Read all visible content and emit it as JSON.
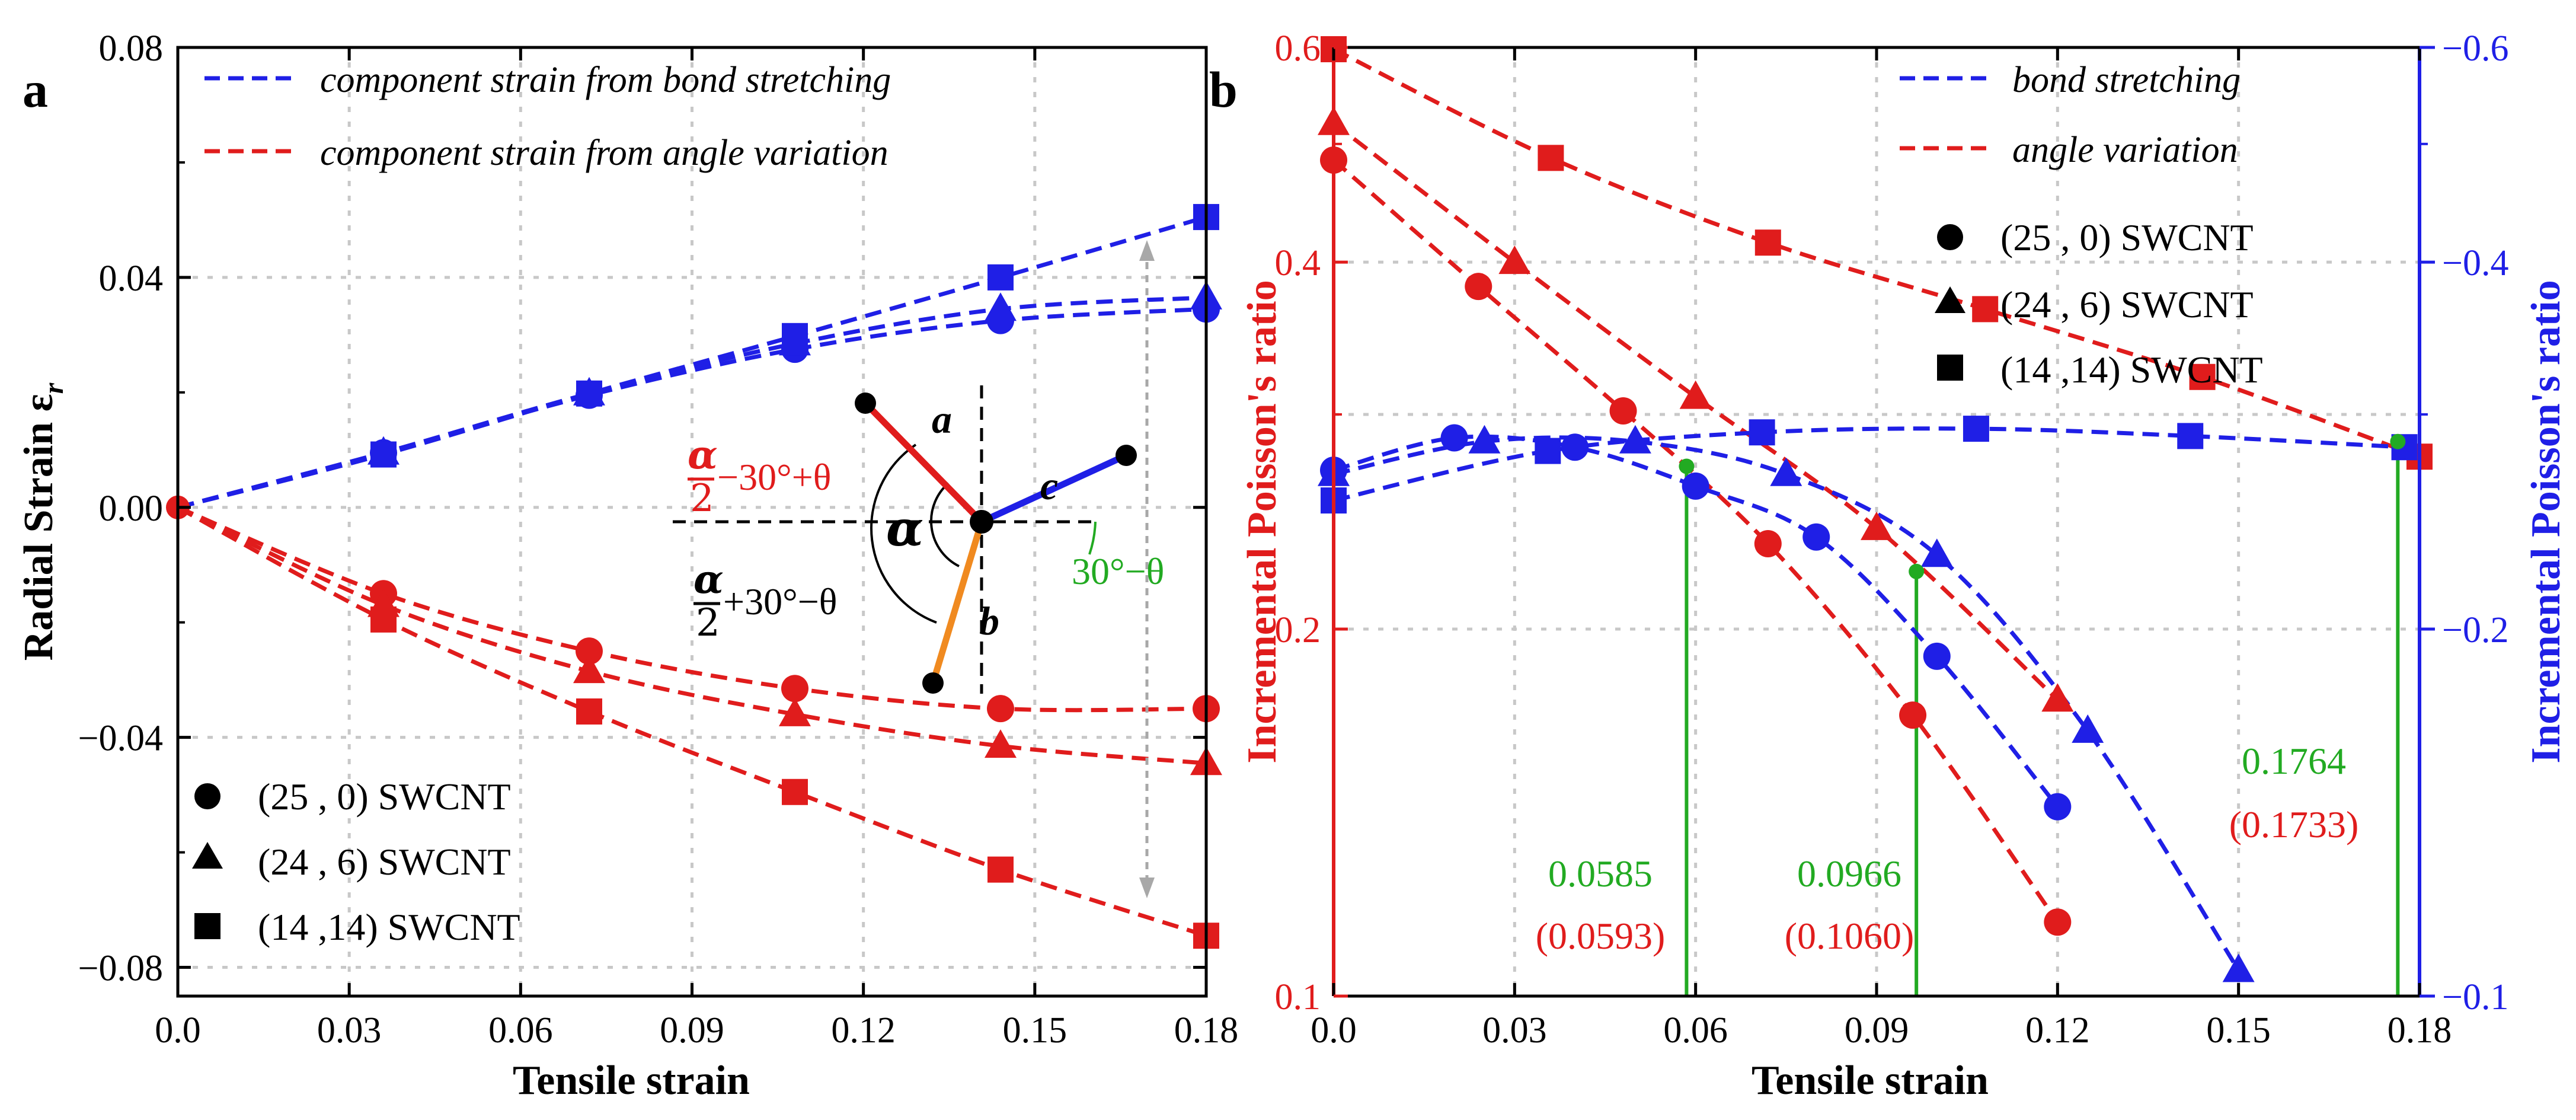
{
  "chart_data": [
    {
      "panel": "a",
      "type": "line",
      "xlabel": "Tensile strain",
      "ylabel": "Radial Strain ε",
      "ylabel_sub": "r",
      "xlim": [
        0.0,
        0.18
      ],
      "ylim": [
        -0.085,
        0.08
      ],
      "xticks": [
        "0.0",
        "0.03",
        "0.06",
        "0.09",
        "0.12",
        "0.15",
        "0.18"
      ],
      "yticks": [
        "0.08",
        "0.04",
        "0.00",
        "−0.04",
        "−0.08"
      ],
      "grid": true,
      "legend_lines": [
        {
          "label": "component strain from bond stretching",
          "color": "#1f1fe6"
        },
        {
          "label": "component strain from angle variation",
          "color": "#e01c1c"
        }
      ],
      "legend_markers": [
        {
          "label": "(25 ,  0) SWCNT",
          "marker": "circle"
        },
        {
          "label": "(24 ,  6) SWCNT",
          "marker": "triangle"
        },
        {
          "label": "(14 ,14) SWCNT",
          "marker": "square"
        }
      ],
      "series": [
        {
          "name": "(25,0) bond stretching",
          "color": "#1f1fe6",
          "marker": "circle",
          "x": [
            0.0,
            0.036,
            0.072,
            0.108,
            0.144,
            0.18
          ],
          "y": [
            0.0,
            0.0095,
            0.0195,
            0.0275,
            0.0325,
            0.0345
          ]
        },
        {
          "name": "(24,6) bond stretching",
          "color": "#1f1fe6",
          "marker": "triangle",
          "x": [
            0.0,
            0.036,
            0.072,
            0.108,
            0.144,
            0.18
          ],
          "y": [
            0.0,
            0.0095,
            0.0198,
            0.0285,
            0.0345,
            0.0365
          ]
        },
        {
          "name": "(14,14) bond stretching",
          "color": "#1f1fe6",
          "marker": "square",
          "x": [
            0.0,
            0.036,
            0.072,
            0.108,
            0.144,
            0.18
          ],
          "y": [
            0.0,
            0.0092,
            0.0198,
            0.0298,
            0.04,
            0.0505
          ]
        },
        {
          "name": "(25,0) angle variation",
          "color": "#e01c1c",
          "marker": "circle",
          "x": [
            0.0,
            0.036,
            0.072,
            0.108,
            0.144,
            0.18
          ],
          "y": [
            0.0,
            -0.015,
            -0.025,
            -0.0315,
            -0.035,
            -0.035
          ]
        },
        {
          "name": "(24,6) angle variation",
          "color": "#e01c1c",
          "marker": "triangle",
          "x": [
            0.0,
            0.036,
            0.072,
            0.108,
            0.144,
            0.18
          ],
          "y": [
            0.0,
            -0.017,
            -0.0285,
            -0.036,
            -0.0415,
            -0.0445
          ]
        },
        {
          "name": "(14,14) angle variation",
          "color": "#e01c1c",
          "marker": "square",
          "x": [
            0.0,
            0.036,
            0.072,
            0.108,
            0.144,
            0.18
          ],
          "y": [
            0.0,
            -0.0195,
            -0.0355,
            -0.0495,
            -0.063,
            -0.0745
          ]
        }
      ],
      "inset": {
        "bond_labels": [
          "a",
          "b",
          "c"
        ],
        "alpha": "α",
        "two": "2",
        "angle_red": "−30°+θ",
        "angle_black": "+30°−θ",
        "angle_green": "30°−θ"
      }
    },
    {
      "panel": "b",
      "type": "line",
      "xlabel": "Tensile strain",
      "ylabel": "Incremental Poisson's ratio",
      "ylabel_right": "Incremental Poisson's ratio",
      "xlim": [
        0.0,
        0.18
      ],
      "ylim": [
        0.1,
        0.6
      ],
      "ylim_right": [
        -0.1,
        -0.6
      ],
      "xticks": [
        "0.0",
        "0.03",
        "0.06",
        "0.09",
        "0.12",
        "0.15",
        "0.18"
      ],
      "yticks": [
        "0.6",
        "0.4",
        "0.2",
        "0.1"
      ],
      "yticks_right": [
        "−0.6",
        "−0.4",
        "−0.2",
        "−0.1"
      ],
      "grid": true,
      "legend_lines": [
        {
          "label": "bond stretching",
          "color": "#1f1fe6"
        },
        {
          "label": "angle variation",
          "color": "#e01c1c"
        }
      ],
      "legend_markers": [
        {
          "label": "(25 ,  0) SWCNT",
          "marker": "circle"
        },
        {
          "label": "(24 ,  6) SWCNT",
          "marker": "triangle"
        },
        {
          "label": "(14 ,14) SWCNT",
          "marker": "square"
        }
      ],
      "series": [
        {
          "name": "(25,0) angle variation",
          "color": "#e01c1c",
          "marker": "circle",
          "x": [
            0.0,
            0.024,
            0.048,
            0.072,
            0.096,
            0.12
          ],
          "y": [
            0.485,
            0.382,
            0.302,
            0.235,
            0.17,
            0.115
          ]
        },
        {
          "name": "(24,6) angle variation",
          "color": "#e01c1c",
          "marker": "triangle",
          "x": [
            0.0,
            0.03,
            0.06,
            0.09,
            0.12
          ],
          "y": [
            0.52,
            0.4,
            0.31,
            0.242,
            0.175
          ]
        },
        {
          "name": "(14,14) angle variation",
          "color": "#e01c1c",
          "marker": "square",
          "x": [
            0.0,
            0.036,
            0.072,
            0.108,
            0.144,
            0.18
          ],
          "y": [
            0.598,
            0.487,
            0.415,
            0.366,
            0.322,
            0.277
          ]
        },
        {
          "name": "(25,0) bond stretching",
          "color": "#1f1fe6",
          "marker": "circle",
          "x": [
            0.0,
            0.02,
            0.04,
            0.06,
            0.08,
            0.1,
            0.12
          ],
          "y": [
            0.27,
            0.287,
            0.282,
            0.262,
            0.238,
            0.19,
            0.143
          ]
        },
        {
          "name": "(24,6) bond stretching",
          "color": "#1f1fe6",
          "marker": "triangle",
          "x": [
            0.0,
            0.025,
            0.05,
            0.075,
            0.1,
            0.125,
            0.15
          ],
          "y": [
            0.268,
            0.285,
            0.285,
            0.268,
            0.23,
            0.165,
            0.105
          ]
        },
        {
          "name": "(14,14) bond stretching",
          "color": "#1f1fe6",
          "marker": "square",
          "x": [
            0.0,
            0.0355,
            0.071,
            0.1065,
            0.142,
            0.1775
          ],
          "y": [
            0.255,
            0.28,
            0.29,
            0.292,
            0.288,
            0.282
          ]
        }
      ],
      "crossings": [
        {
          "x": 0.0585,
          "y": 0.272,
          "label": "0.0585",
          "label_paren": "(0.0593)"
        },
        {
          "x": 0.0966,
          "y": 0.223,
          "label": "0.0966",
          "label_paren": "(0.1060)"
        },
        {
          "x": 0.1764,
          "y": 0.285,
          "label": "0.1764",
          "label_paren": "(0.1733)"
        }
      ]
    }
  ]
}
